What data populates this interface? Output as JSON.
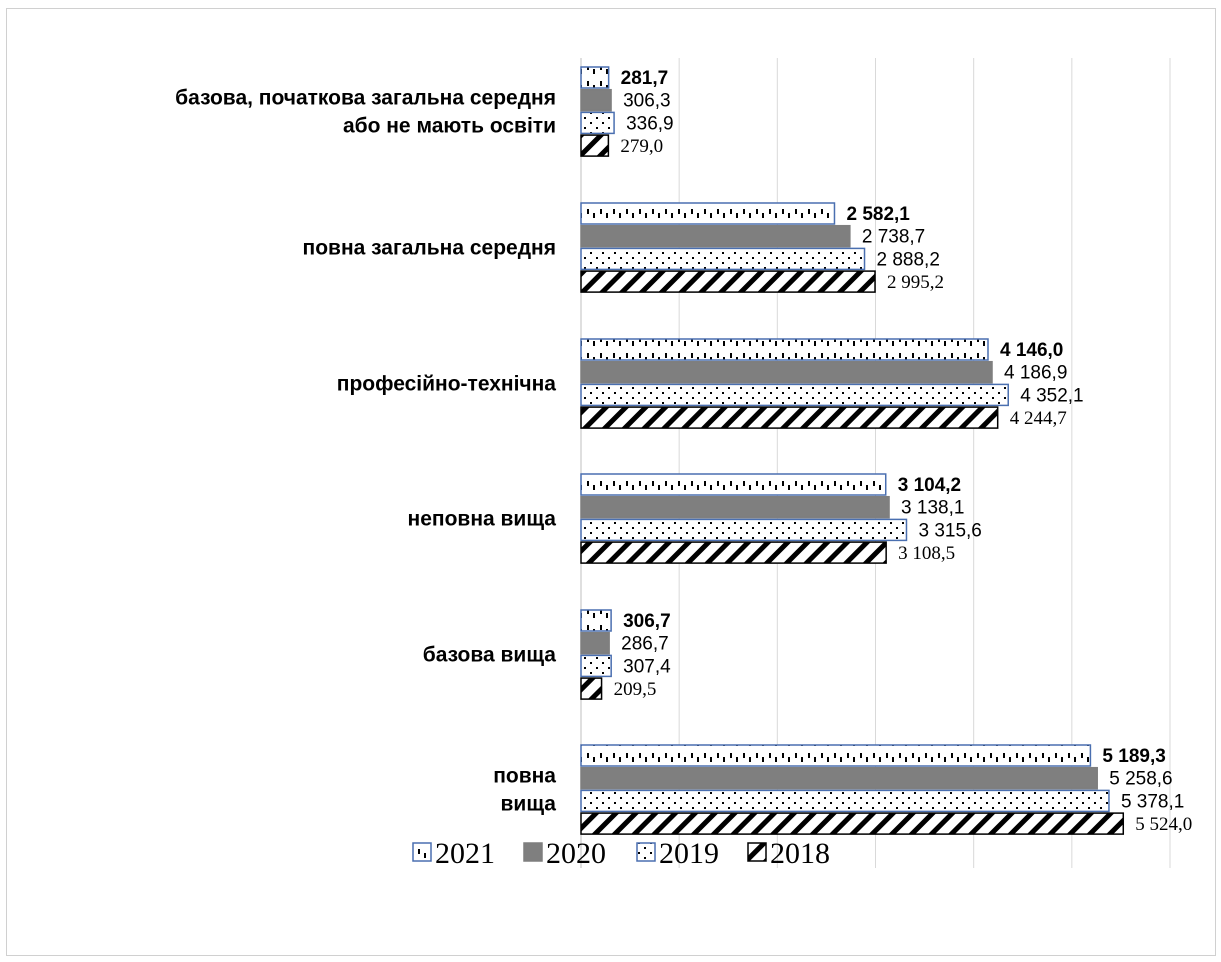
{
  "chart_data": {
    "type": "bar",
    "orientation": "horizontal",
    "title": "",
    "xlabel": "",
    "ylabel": "",
    "categories": [
      [
        "базова, початкова загальна середня",
        "або не мають освіти"
      ],
      [
        "повна загальна середня"
      ],
      [
        "професійно-технічна"
      ],
      [
        "неповна вища"
      ],
      [
        "базова вища"
      ],
      [
        "повна",
        "вища"
      ]
    ],
    "series": [
      {
        "name": "2021",
        "values": [
          281.7,
          2582.1,
          4146.0,
          3104.2,
          306.7,
          5189.3
        ],
        "labels": [
          "281,7",
          "2 582,1",
          "4 146,0",
          "3 104,2",
          "306,7",
          "5 189,3"
        ]
      },
      {
        "name": "2020",
        "values": [
          306.3,
          2738.7,
          4186.9,
          3138.1,
          286.7,
          5258.6
        ],
        "labels": [
          "306,3",
          "2 738,7",
          "4 186,9",
          "3 138,1",
          "286,7",
          "5 258,6"
        ]
      },
      {
        "name": "2019",
        "values": [
          336.9,
          2888.2,
          4352.1,
          3315.6,
          307.4,
          5378.1
        ],
        "labels": [
          "336,9",
          "2 888,2",
          "4 352,1",
          "3 315,6",
          "307,4",
          "5 378,1"
        ]
      },
      {
        "name": "2018",
        "values": [
          279.0,
          2995.2,
          4244.7,
          3108.5,
          209.5,
          5524.0
        ],
        "labels": [
          "279,0",
          "2 995,2",
          "4 244,7",
          "3 108,5",
          "209,5",
          "5 524,0"
        ]
      }
    ],
    "xlim": [
      0,
      6000
    ],
    "grid": true,
    "legend_position": "bottom"
  }
}
